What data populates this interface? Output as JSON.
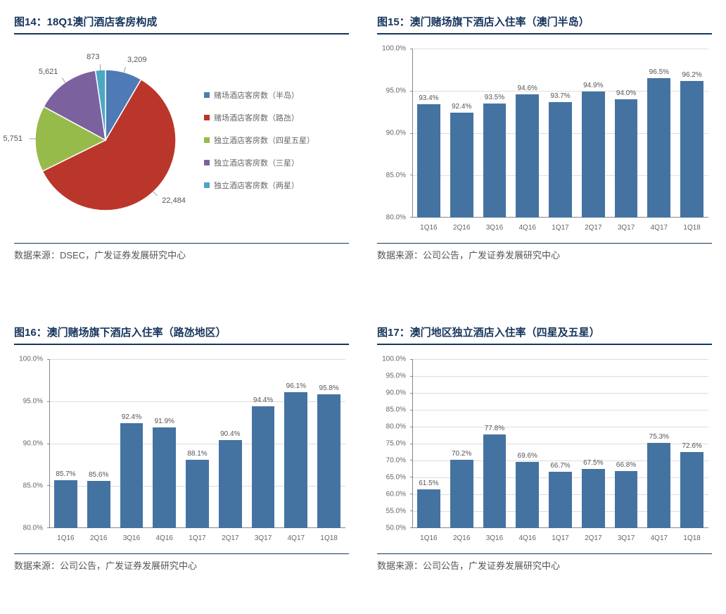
{
  "panels": {
    "pie": {
      "title": "图14：18Q1澳门酒店客房构成",
      "source": "数据来源：DSEC，广发证券发展研究中心",
      "slices": [
        {
          "label": "赌场酒店客房数（半岛）",
          "value": 3209,
          "display": "3,209",
          "color": "#4e7ab6"
        },
        {
          "label": "赌场酒店客房数（路氹）",
          "value": 22484,
          "display": "22,484",
          "color": "#bb362a"
        },
        {
          "label": "独立酒店客房数（四星五星）",
          "value": 5751,
          "display": "5,751",
          "color": "#96bb4a"
        },
        {
          "label": "独立酒店客房数（三星）",
          "value": 5621,
          "display": "5,621",
          "color": "#7b629f"
        },
        {
          "label": "独立酒店客房数（两星）",
          "value": 873,
          "display": "873",
          "color": "#4ba8c4"
        }
      ]
    },
    "bar1": {
      "title": "图15：澳门赌场旗下酒店入住率（澳门半岛）",
      "source": "数据来源：公司公告，广发证券发展研究中心",
      "ylim": [
        80,
        100
      ],
      "ystep": 5,
      "bar_color": "#4473a2",
      "categories": [
        "1Q16",
        "2Q16",
        "3Q16",
        "4Q16",
        "1Q17",
        "2Q17",
        "3Q17",
        "4Q17",
        "1Q18"
      ],
      "values": [
        93.4,
        92.4,
        93.5,
        94.6,
        93.7,
        94.9,
        94.0,
        96.5,
        96.2
      ]
    },
    "bar2": {
      "title": "图16：澳门赌场旗下酒店入住率（路氹地区）",
      "source": "数据来源：公司公告，广发证券发展研究中心",
      "ylim": [
        80,
        100
      ],
      "ystep": 5,
      "bar_color": "#4473a2",
      "categories": [
        "1Q16",
        "2Q16",
        "3Q16",
        "4Q16",
        "1Q17",
        "2Q17",
        "3Q17",
        "4Q17",
        "1Q18"
      ],
      "values": [
        85.7,
        85.6,
        92.4,
        91.9,
        88.1,
        90.4,
        94.4,
        96.1,
        95.8
      ]
    },
    "bar3": {
      "title": "图17：澳门地区独立酒店入住率（四星及五星）",
      "source": "数据来源：公司公告，广发证券发展研究中心",
      "ylim": [
        50,
        100
      ],
      "ystep": 5,
      "bar_color": "#4473a2",
      "categories": [
        "1Q16",
        "2Q16",
        "3Q16",
        "4Q16",
        "1Q17",
        "2Q17",
        "3Q17",
        "4Q17",
        "1Q18"
      ],
      "values": [
        61.5,
        70.2,
        77.8,
        69.6,
        66.7,
        67.5,
        66.8,
        75.3,
        72.6
      ]
    }
  }
}
